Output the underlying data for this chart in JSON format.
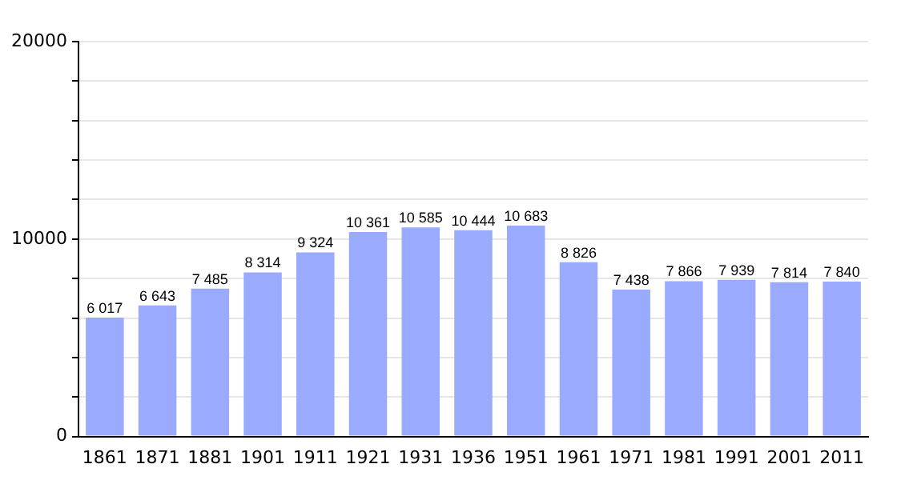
{
  "chart_data": {
    "type": "bar",
    "categories": [
      "1861",
      "1871",
      "1881",
      "1901",
      "1911",
      "1921",
      "1931",
      "1936",
      "1951",
      "1961",
      "1971",
      "1981",
      "1991",
      "2001",
      "2011"
    ],
    "values": [
      6017,
      6643,
      7485,
      8314,
      9324,
      10361,
      10585,
      10444,
      10683,
      8826,
      7438,
      7866,
      7939,
      7814,
      7840
    ],
    "value_labels": [
      "6 017",
      "6 643",
      "7 485",
      "8 314",
      "9 324",
      "10 361",
      "10 585",
      "10 444",
      "10 683",
      "8 826",
      "7 438",
      "7 866",
      "7 939",
      "7 814",
      "7 840"
    ],
    "color": "#99aaff",
    "ylim": [
      0,
      20000
    ],
    "yticks": [
      0,
      {
        "value": 2000,
        "label": null
      },
      {
        "value": 4000,
        "label": null
      },
      {
        "value": 6000,
        "label": null
      },
      {
        "value": 8000,
        "label": null
      },
      10000,
      {
        "value": 12000,
        "label": null
      },
      {
        "value": 14000,
        "label": null
      },
      {
        "value": 16000,
        "label": null
      },
      {
        "value": 18000,
        "label": null
      },
      20000
    ],
    "grid": "y",
    "legend": false
  }
}
